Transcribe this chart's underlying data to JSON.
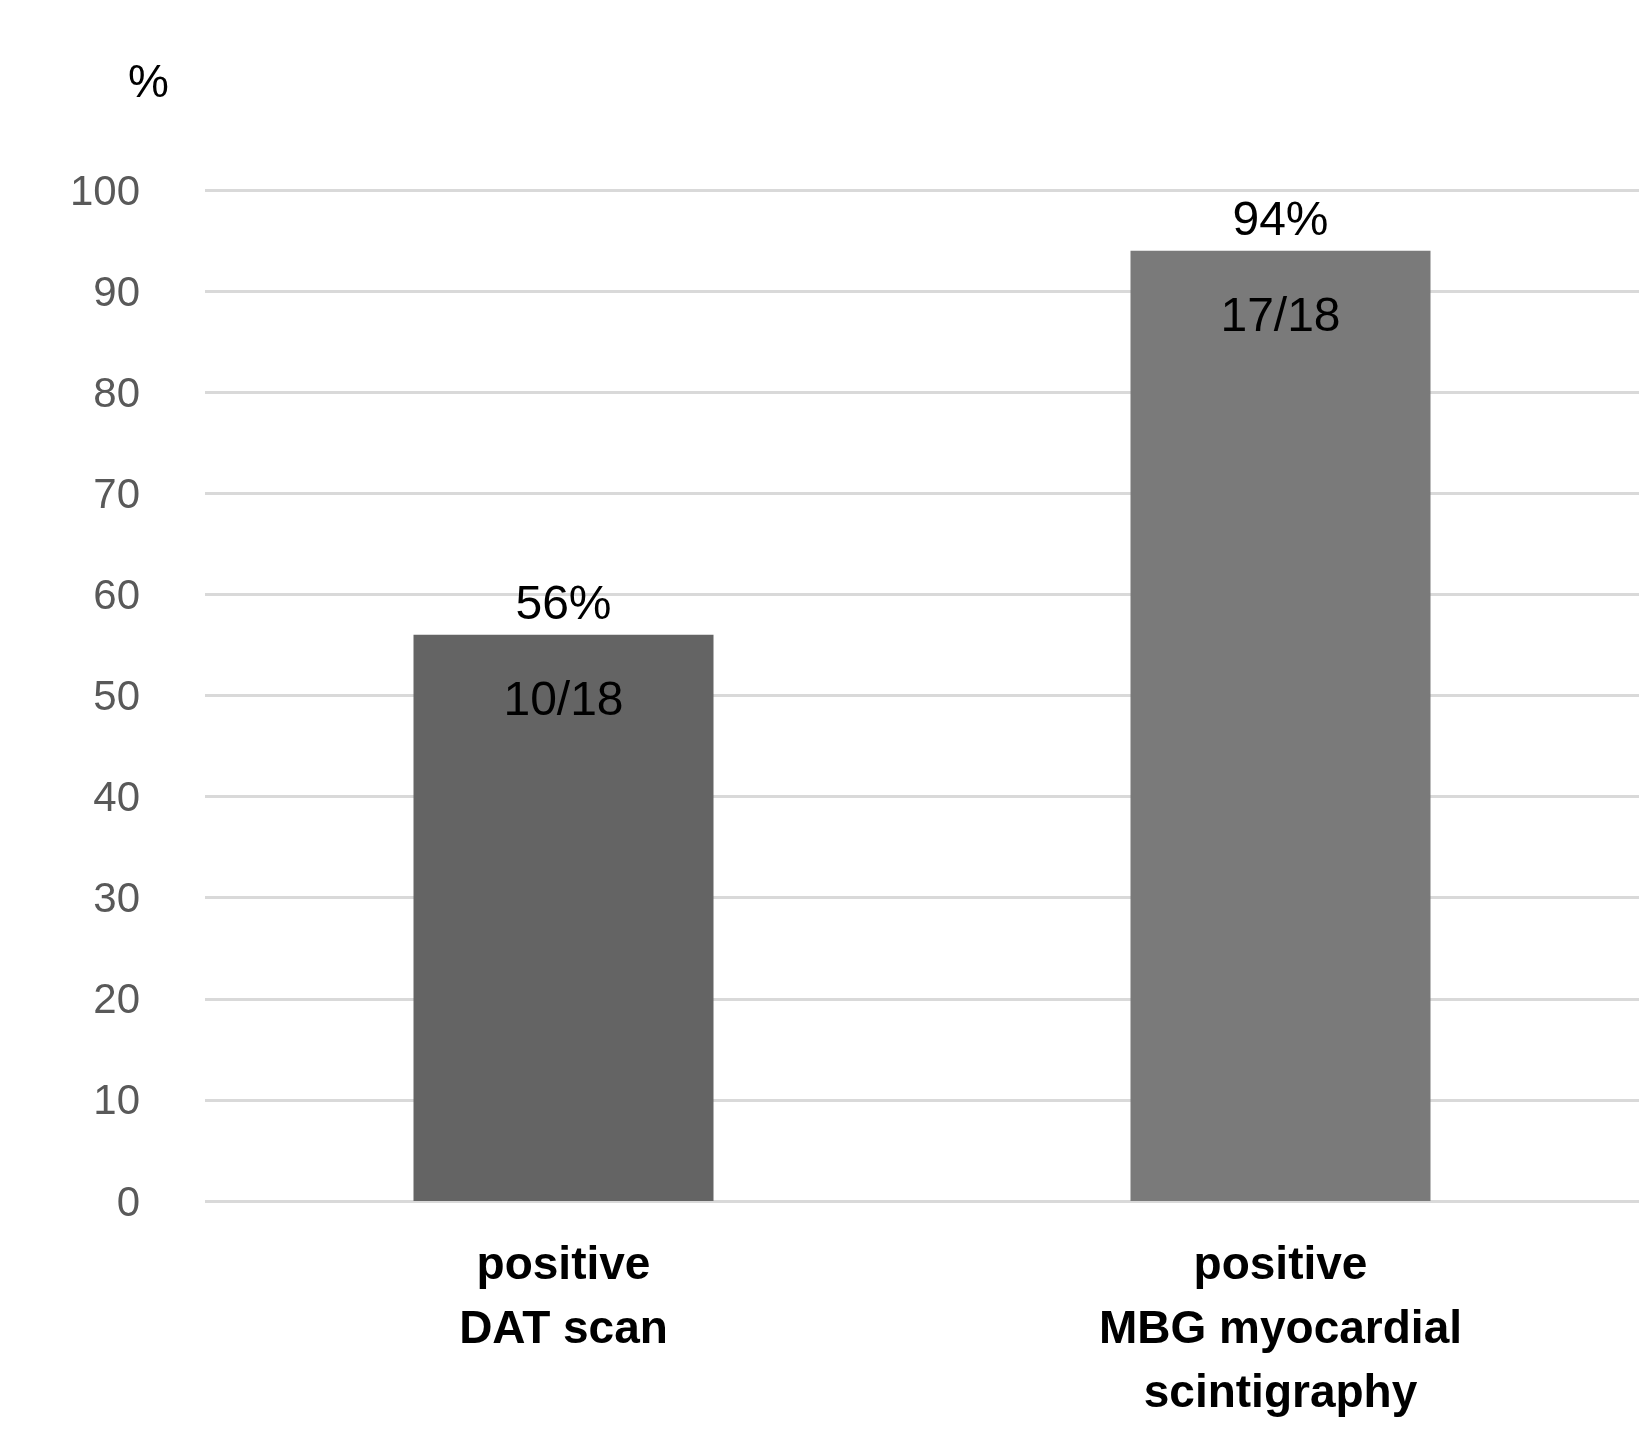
{
  "chart_data": {
    "type": "bar",
    "ylabel": "%",
    "categories": [
      "positive\nDAT scan",
      "positive\nMBG myocardial\nscintigraphy"
    ],
    "values": [
      56,
      94
    ],
    "colors": [
      "#646464",
      "#7a7a7a"
    ],
    "value_labels": [
      "56%",
      "94%"
    ],
    "annotations": [
      "10/18",
      "17/18"
    ],
    "ylim": [
      0,
      100
    ],
    "yticks": [
      0,
      10,
      20,
      30,
      40,
      50,
      60,
      70,
      80,
      90,
      100
    ],
    "grid": "y"
  }
}
